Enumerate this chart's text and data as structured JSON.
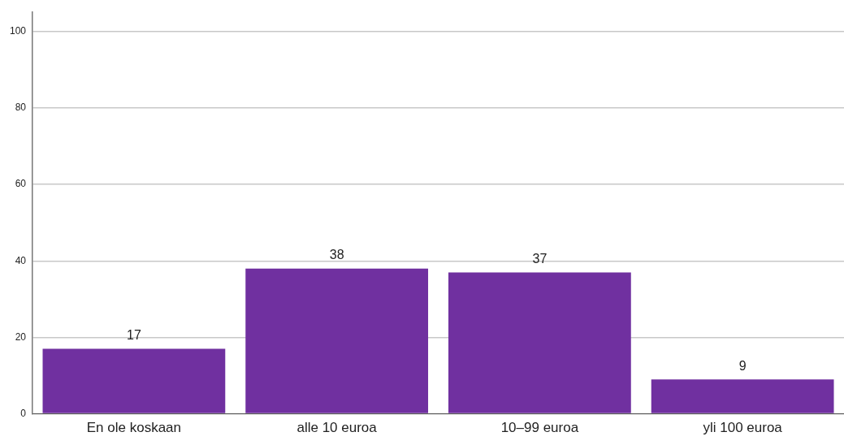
{
  "chart_data": {
    "type": "bar",
    "categories": [
      "En ole koskaan",
      "alle 10 euroa",
      "10–99 euroa",
      "yli 100 euroa"
    ],
    "values": [
      17,
      38,
      37,
      9
    ],
    "color": "#7030a0",
    "ylim": [
      0,
      105
    ],
    "yticks": [
      0,
      20,
      40,
      60,
      80,
      100
    ],
    "grid": "y",
    "data_labels": true,
    "legend": false
  }
}
